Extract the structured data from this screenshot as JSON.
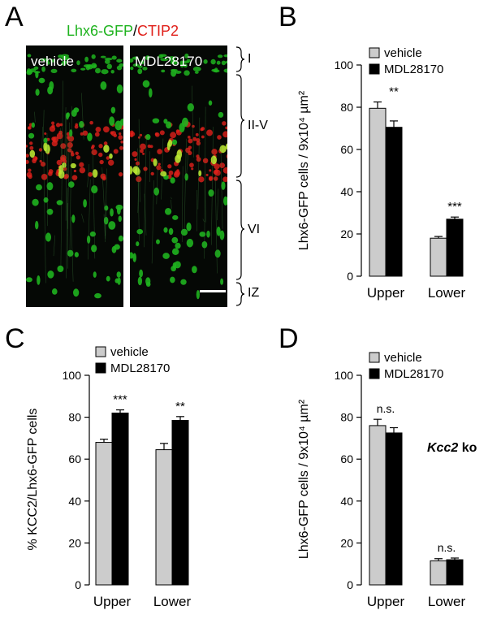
{
  "panels": {
    "a": "A",
    "b": "B",
    "c": "C",
    "d": "D"
  },
  "micro": {
    "title_green": "Lhx6-GFP",
    "title_slash": "/",
    "title_red": "CTIP2",
    "left_label": "vehicle",
    "right_label": "MDL28170",
    "layers": [
      "I",
      "II-V",
      "VI",
      "IZ"
    ]
  },
  "colors": {
    "vehicle": "#cccccc",
    "mdl": "#000000",
    "gfp": "#1fb31f",
    "ctip2": "#e0201a"
  },
  "chart_data": [
    {
      "panel": "B",
      "type": "bar",
      "categories": [
        "Upper",
        "Lower"
      ],
      "series": [
        {
          "name": "vehicle",
          "values": [
            79.5,
            18
          ],
          "errors": [
            3,
            0.8
          ]
        },
        {
          "name": "MDL28170",
          "values": [
            70.5,
            27
          ],
          "errors": [
            3,
            1
          ]
        }
      ],
      "significance": [
        "**",
        "***"
      ],
      "ylabel": "Lhx6-GFP cells / 9x10⁴ µm²",
      "ylim": [
        0,
        100
      ],
      "yticks": [
        0,
        20,
        40,
        60,
        80,
        100
      ],
      "legend": "top-left"
    },
    {
      "panel": "C",
      "type": "bar",
      "categories": [
        "Upper",
        "Lower"
      ],
      "series": [
        {
          "name": "vehicle",
          "values": [
            68,
            64.5
          ],
          "errors": [
            1.5,
            3
          ]
        },
        {
          "name": "MDL28170",
          "values": [
            82,
            78.5
          ],
          "errors": [
            1.5,
            1.8
          ]
        }
      ],
      "significance": [
        "***",
        "**"
      ],
      "ylabel": "% KCC2/Lhx6-GFP cells",
      "ylim": [
        0,
        100
      ],
      "yticks": [
        0,
        20,
        40,
        60,
        80,
        100
      ],
      "legend": "top-left"
    },
    {
      "panel": "D",
      "type": "bar",
      "categories": [
        "Upper",
        "Lower"
      ],
      "series": [
        {
          "name": "vehicle",
          "values": [
            76,
            11.5
          ],
          "errors": [
            3,
            1
          ]
        },
        {
          "name": "MDL28170",
          "values": [
            72.5,
            12
          ],
          "errors": [
            2.5,
            0.8
          ]
        }
      ],
      "significance": [
        "n.s.",
        "n.s."
      ],
      "annotation": {
        "italic": "Kcc2",
        "rest": " ko"
      },
      "ylabel": "Lhx6-GFP cells / 9x10⁴ µm²",
      "ylim": [
        0,
        100
      ],
      "yticks": [
        0,
        20,
        40,
        60,
        80,
        100
      ],
      "legend": "top-left"
    }
  ]
}
